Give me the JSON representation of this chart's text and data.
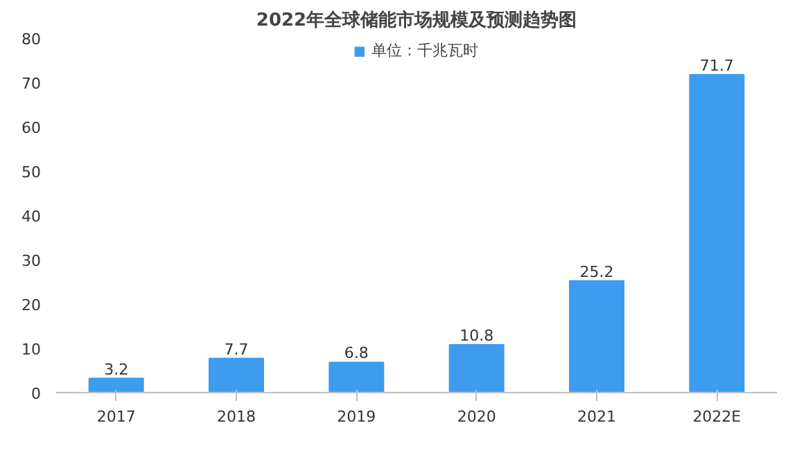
{
  "chart_data": {
    "type": "bar",
    "title": "2022年全球储能市场规模及预测趋势图",
    "categories": [
      "2017",
      "2018",
      "2019",
      "2020",
      "2021",
      "2022E"
    ],
    "series": [
      {
        "name": "单位：千兆瓦时",
        "color": "#3d9cf0",
        "values": [
          3.2,
          7.7,
          6.8,
          10.8,
          25.2,
          71.7
        ]
      }
    ],
    "ylim": [
      0,
      80
    ],
    "yticks": [
      0,
      10,
      20,
      30,
      40,
      50,
      60,
      70,
      80
    ],
    "data_labels": true,
    "legend": "top",
    "grid": false
  }
}
